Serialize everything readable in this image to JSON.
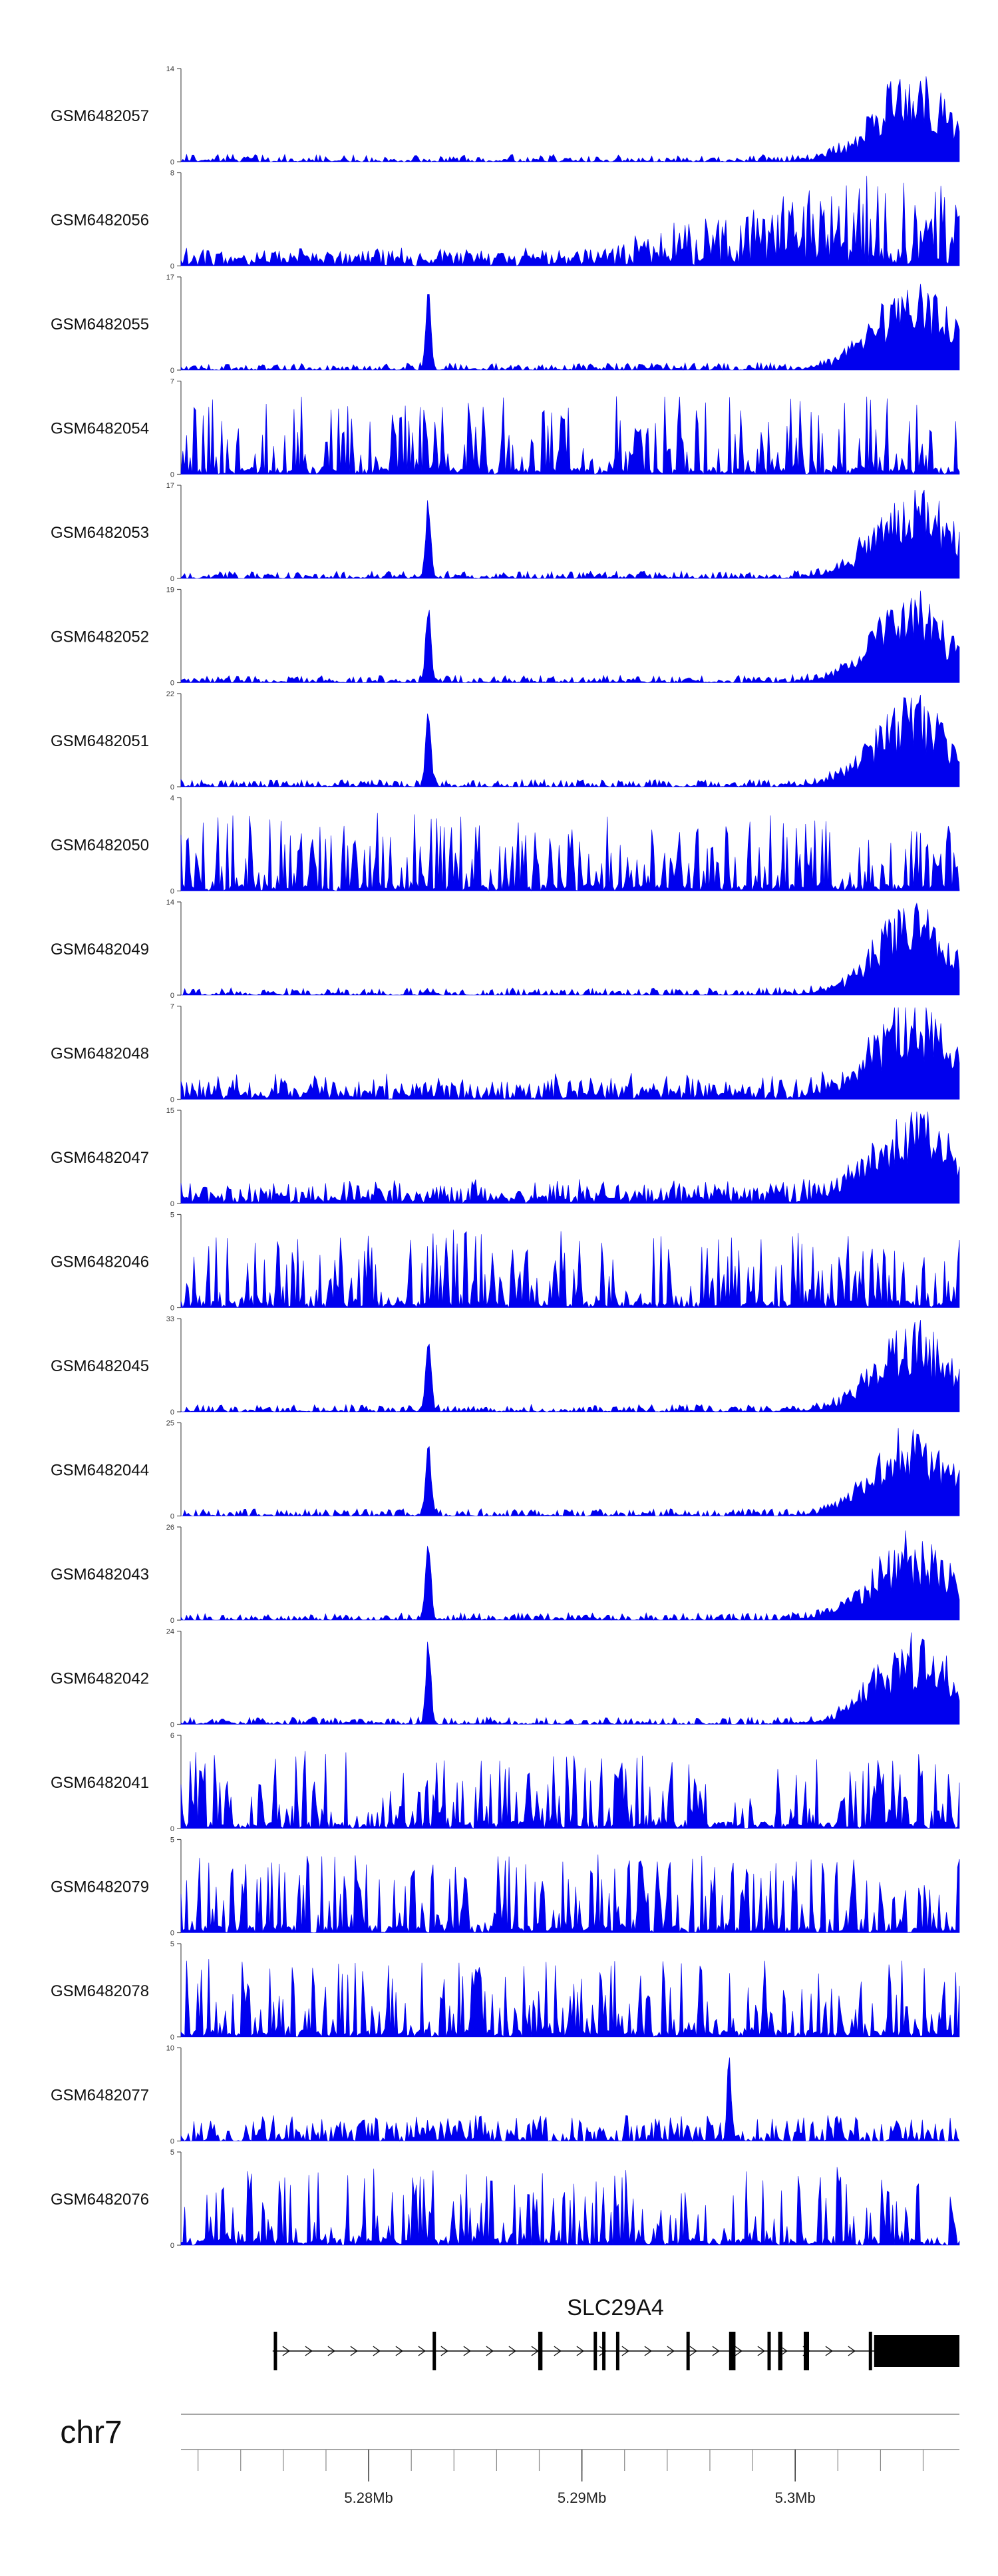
{
  "chart_data": {
    "type": "area",
    "title": "",
    "colors": {
      "signal": "#0000ee",
      "axis": "#555555",
      "gene": "#000000",
      "track_line": "#888888"
    },
    "genome_axis": {
      "chromosome": "chr7",
      "range": [
        5.2712,
        5.3077
      ],
      "unit": "Mb",
      "major_ticks": [
        5.28,
        5.29,
        5.3
      ],
      "tick_labels": [
        "5.28Mb",
        "5.29Mb",
        "5.3Mb"
      ],
      "minor_ticks": [
        5.272,
        5.274,
        5.276,
        5.278,
        5.28,
        5.282,
        5.284,
        5.286,
        5.288,
        5.29,
        5.292,
        5.294,
        5.296,
        5.298,
        5.3,
        5.302,
        5.304,
        5.306
      ]
    },
    "gene": {
      "name": "SLC29A4",
      "strand": "+",
      "start": 5.2755,
      "end": 5.3077,
      "exons": [
        {
          "start": 5.27555,
          "end": 5.2757
        },
        {
          "start": 5.283,
          "end": 5.28315
        },
        {
          "start": 5.28795,
          "end": 5.28815
        },
        {
          "start": 5.29055,
          "end": 5.2907
        },
        {
          "start": 5.29095,
          "end": 5.2911
        },
        {
          "start": 5.2916,
          "end": 5.29175
        },
        {
          "start": 5.2949,
          "end": 5.29505
        },
        {
          "start": 5.2969,
          "end": 5.2972
        },
        {
          "start": 5.2987,
          "end": 5.29885
        },
        {
          "start": 5.2992,
          "end": 5.2994
        },
        {
          "start": 5.3004,
          "end": 5.30065
        },
        {
          "start": 5.30345,
          "end": 5.3036
        },
        {
          "start": 5.3037,
          "end": 5.3077
        }
      ]
    },
    "tracks": [
      {
        "name": "GSM6482057",
        "ymax": 14,
        "ymin": 0,
        "peak_region": [
          5.301,
          5.3077
        ]
      },
      {
        "name": "GSM6482056",
        "ymax": 8,
        "ymin": 0,
        "peak_region": [
          5.295,
          5.3077
        ]
      },
      {
        "name": "GSM6482055",
        "ymax": 17,
        "ymin": 0,
        "peak_region": [
          5.303,
          5.3077
        ]
      },
      {
        "name": "GSM6482054",
        "ymax": 7,
        "ymin": 0,
        "peak_region": [
          5.2712,
          5.3077
        ]
      },
      {
        "name": "GSM6482053",
        "ymax": 17,
        "ymin": 0,
        "peak_region": [
          5.3,
          5.3077
        ]
      },
      {
        "name": "GSM6482052",
        "ymax": 19,
        "ymin": 0,
        "peak_region": [
          5.303,
          5.3077
        ]
      },
      {
        "name": "GSM6482051",
        "ymax": 22,
        "ymin": 0,
        "peak_region": [
          5.303,
          5.3077
        ]
      },
      {
        "name": "GSM6482050",
        "ymax": 4,
        "ymin": 0,
        "peak_region": [
          5.2712,
          5.3077
        ]
      },
      {
        "name": "GSM6482049",
        "ymax": 14,
        "ymin": 0,
        "peak_region": [
          5.303,
          5.3077
        ]
      },
      {
        "name": "GSM6482048",
        "ymax": 7,
        "ymin": 0,
        "peak_region": [
          5.303,
          5.3077
        ]
      },
      {
        "name": "GSM6482047",
        "ymax": 15,
        "ymin": 0,
        "peak_region": [
          5.303,
          5.3077
        ]
      },
      {
        "name": "GSM6482046",
        "ymax": 5,
        "ymin": 0,
        "peak_region": [
          5.2712,
          5.3077
        ]
      },
      {
        "name": "GSM6482045",
        "ymax": 33,
        "ymin": 0,
        "peak_region": [
          5.303,
          5.3077
        ]
      },
      {
        "name": "GSM6482044",
        "ymax": 25,
        "ymin": 0,
        "peak_region": [
          5.303,
          5.3077
        ]
      },
      {
        "name": "GSM6482043",
        "ymax": 26,
        "ymin": 0,
        "peak_region": [
          5.303,
          5.3077
        ]
      },
      {
        "name": "GSM6482042",
        "ymax": 24,
        "ymin": 0,
        "peak_region": [
          5.303,
          5.3077
        ]
      },
      {
        "name": "GSM6482041",
        "ymax": 6,
        "ymin": 0,
        "peak_region": [
          5.2712,
          5.3077
        ]
      },
      {
        "name": "GSM6482079",
        "ymax": 5,
        "ymin": 0,
        "peak_region": [
          5.2712,
          5.3077
        ]
      },
      {
        "name": "GSM6482078",
        "ymax": 5,
        "ymin": 0,
        "peak_region": [
          5.2712,
          5.3077
        ]
      },
      {
        "name": "GSM6482077",
        "ymax": 10,
        "ymin": 0,
        "peak_region": [
          5.2968,
          5.2972
        ]
      },
      {
        "name": "GSM6482076",
        "ymax": 5,
        "ymin": 0,
        "peak_region": [
          5.2712,
          5.3077
        ]
      }
    ]
  }
}
